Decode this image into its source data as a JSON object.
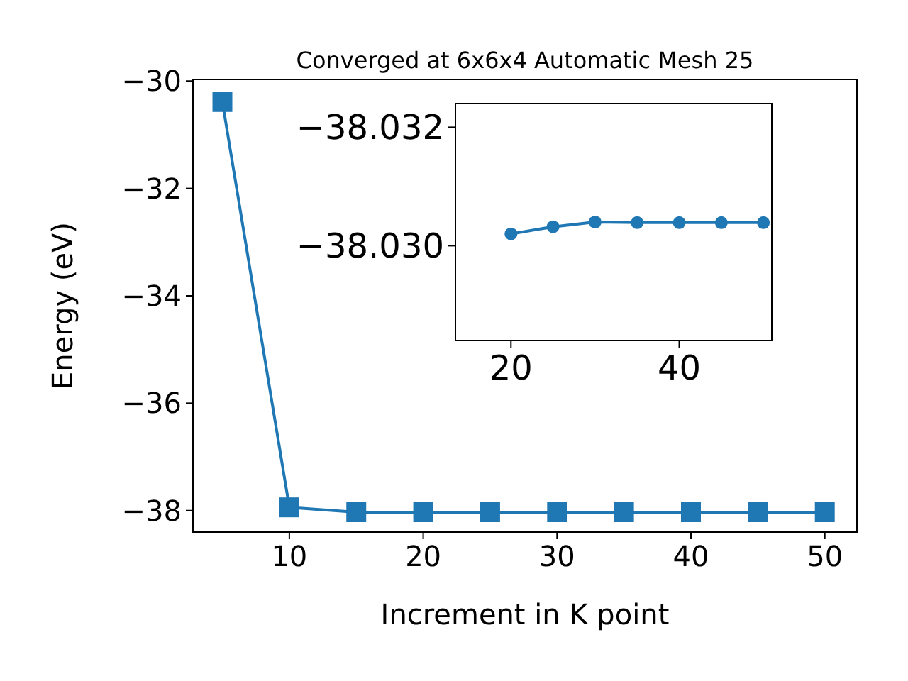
{
  "chart_data": [
    {
      "type": "line",
      "title": "Converged at 6x6x4 Automatic Mesh 25",
      "xlabel": "Increment in K point",
      "ylabel": "Energy (eV)",
      "x": [
        5,
        10,
        15,
        20,
        25,
        30,
        35,
        40,
        45,
        50
      ],
      "series": [
        {
          "color": "#1f77b4",
          "values": [
            -30.39,
            -37.94,
            -38.03,
            -38.03,
            -38.03,
            -38.03,
            -38.03,
            -38.03,
            -38.03,
            -38.03
          ]
        }
      ],
      "xlim": [
        2.8,
        52.4
      ],
      "xticks": [
        10,
        20,
        30,
        40,
        50
      ],
      "ylim": [
        -38.4,
        -29.97
      ],
      "yticks": [
        {
          "value": -38,
          "label": "−38"
        },
        {
          "value": -36,
          "label": "−36"
        },
        {
          "value": -34,
          "label": "−34"
        },
        {
          "value": -32,
          "label": "−32"
        },
        {
          "value": -30,
          "label": "−30"
        }
      ],
      "marker": "square",
      "grid": false
    },
    {
      "type": "line",
      "x": [
        20,
        25,
        30,
        35,
        40,
        45,
        50
      ],
      "series": [
        {
          "color": "#1f77b4",
          "values": [
            -38.0302,
            -38.03032,
            -38.0304,
            -38.03039,
            -38.03039,
            -38.03039,
            -38.03039
          ]
        }
      ],
      "xlim": [
        13.4,
        51.0
      ],
      "xticks": [
        20,
        40
      ],
      "ylim": [
        -38.0284,
        -38.0324
      ],
      "yticks": [
        {
          "value": -38.03,
          "label": "−38.030"
        },
        {
          "value": -38.032,
          "label": "−38.032"
        }
      ],
      "marker": "circle",
      "grid": false
    }
  ]
}
